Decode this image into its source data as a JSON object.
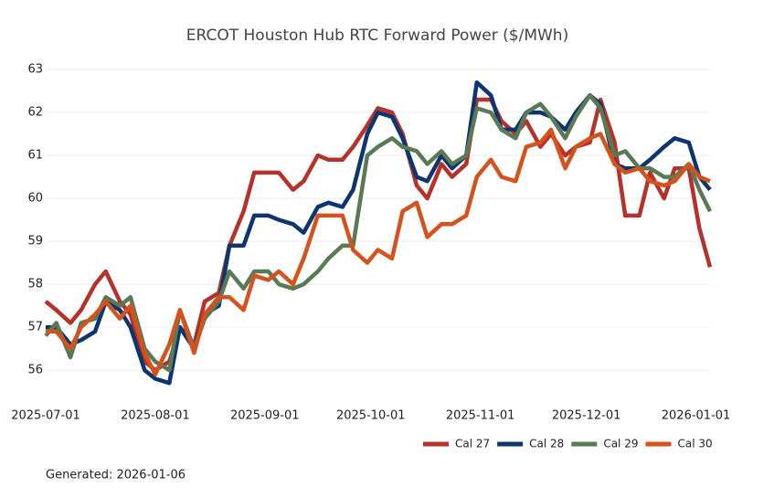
{
  "chart_data": {
    "type": "line",
    "title": "ERCOT Houston Hub RTC Forward Power ($/MWh)",
    "note": "Generated: 2026-01-06",
    "x": [
      "2025-07-01",
      "2025-07-04",
      "2025-07-08",
      "2025-07-11",
      "2025-07-15",
      "2025-07-18",
      "2025-07-22",
      "2025-07-25",
      "2025-07-29",
      "2025-08-01",
      "2025-08-05",
      "2025-08-08",
      "2025-08-12",
      "2025-08-15",
      "2025-08-19",
      "2025-08-22",
      "2025-08-26",
      "2025-08-29",
      "2025-09-02",
      "2025-09-05",
      "2025-09-09",
      "2025-09-12",
      "2025-09-16",
      "2025-09-19",
      "2025-09-23",
      "2025-09-26",
      "2025-09-30",
      "2025-10-03",
      "2025-10-07",
      "2025-10-10",
      "2025-10-14",
      "2025-10-17",
      "2025-10-21",
      "2025-10-24",
      "2025-10-28",
      "2025-10-31",
      "2025-11-04",
      "2025-11-07",
      "2025-11-11",
      "2025-11-14",
      "2025-11-18",
      "2025-11-21",
      "2025-11-25",
      "2025-11-28",
      "2025-12-02",
      "2025-12-05",
      "2025-12-09",
      "2025-12-12",
      "2025-12-16",
      "2025-12-19",
      "2025-12-23",
      "2025-12-26",
      "2025-12-30",
      "2026-01-02",
      "2026-01-05"
    ],
    "series": [
      {
        "name": "Cal 27",
        "color": "#b5322a",
        "values": [
          57.6,
          57.4,
          57.1,
          57.4,
          58.0,
          58.3,
          57.6,
          57.3,
          56.2,
          56.0,
          56.2,
          57.0,
          56.6,
          57.6,
          57.8,
          58.9,
          59.7,
          60.6,
          60.6,
          60.6,
          60.2,
          60.4,
          61.0,
          60.9,
          60.9,
          61.2,
          61.7,
          62.1,
          62.0,
          61.5,
          60.3,
          60.0,
          60.8,
          60.5,
          60.8,
          62.3,
          62.3,
          61.8,
          61.5,
          61.8,
          61.2,
          61.5,
          61.0,
          61.2,
          61.3,
          62.3,
          61.3,
          59.6,
          59.6,
          60.6,
          60.0,
          60.7,
          60.7,
          59.3,
          58.4
        ]
      },
      {
        "name": "Cal 28",
        "color": "#0d3570",
        "values": [
          57.0,
          57.0,
          56.6,
          56.7,
          56.9,
          57.6,
          57.4,
          57.0,
          56.0,
          55.8,
          55.7,
          57.0,
          56.5,
          57.3,
          57.5,
          58.9,
          58.9,
          59.6,
          59.6,
          59.5,
          59.4,
          59.2,
          59.8,
          59.9,
          59.8,
          60.2,
          61.5,
          62.0,
          61.9,
          61.4,
          60.5,
          60.4,
          61.0,
          60.7,
          61.0,
          62.7,
          62.4,
          61.6,
          61.6,
          62.0,
          62.0,
          61.9,
          61.6,
          62.0,
          62.4,
          62.2,
          60.8,
          60.7,
          60.7,
          60.9,
          61.2,
          61.4,
          61.3,
          60.5,
          60.2
        ]
      },
      {
        "name": "Cal 29",
        "color": "#5a7a55",
        "values": [
          56.8,
          57.1,
          56.3,
          57.1,
          57.2,
          57.7,
          57.5,
          57.7,
          56.5,
          56.2,
          56.0,
          57.4,
          56.5,
          57.2,
          57.6,
          58.3,
          57.9,
          58.3,
          58.3,
          58.0,
          57.9,
          58.0,
          58.3,
          58.6,
          58.9,
          58.9,
          61.0,
          61.2,
          61.4,
          61.2,
          61.1,
          60.8,
          61.1,
          60.8,
          61.0,
          62.1,
          62.0,
          61.6,
          61.4,
          62.0,
          62.2,
          61.9,
          61.4,
          61.9,
          62.4,
          62.1,
          61.0,
          61.1,
          60.7,
          60.7,
          60.5,
          60.5,
          60.8,
          60.2,
          59.7
        ]
      },
      {
        "name": "Cal 30",
        "color": "#d4531c",
        "values": [
          56.9,
          56.9,
          56.5,
          57.0,
          57.3,
          57.6,
          57.2,
          57.5,
          56.4,
          55.9,
          56.6,
          57.4,
          56.4,
          57.3,
          57.7,
          57.7,
          57.4,
          58.2,
          58.1,
          58.3,
          58.0,
          58.6,
          59.6,
          59.6,
          59.6,
          58.8,
          58.5,
          58.8,
          58.6,
          59.7,
          59.9,
          59.1,
          59.4,
          59.4,
          59.6,
          60.5,
          60.9,
          60.5,
          60.4,
          61.2,
          61.3,
          61.6,
          60.7,
          61.2,
          61.4,
          61.5,
          60.8,
          60.6,
          60.7,
          60.4,
          60.3,
          60.4,
          60.8,
          60.5,
          60.4
        ]
      }
    ],
    "xlim": [
      "2025-07-01",
      "2026-01-05"
    ],
    "xticks": [
      "2025-07-01",
      "2025-08-01",
      "2025-09-01",
      "2025-10-01",
      "2025-11-01",
      "2025-12-01",
      "2026-01-01"
    ],
    "ylim": [
      55.3,
      63.3
    ],
    "yticks": [
      56,
      57,
      58,
      59,
      60,
      61,
      62,
      63
    ],
    "grid": true,
    "legend": "bottom-right"
  }
}
